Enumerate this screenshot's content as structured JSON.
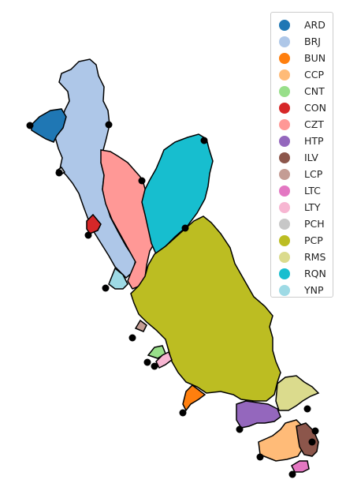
{
  "legend": {
    "items": [
      {
        "label": "ARD",
        "color": "#1f77b4"
      },
      {
        "label": "BRJ",
        "color": "#aec7e8"
      },
      {
        "label": "BUN",
        "color": "#ff7f0e"
      },
      {
        "label": "CCP",
        "color": "#ffbb78"
      },
      {
        "label": "CNT",
        "color": "#98df8a"
      },
      {
        "label": "CON",
        "color": "#d62728"
      },
      {
        "label": "CZT",
        "color": "#ff9896"
      },
      {
        "label": "HTP",
        "color": "#9467bd"
      },
      {
        "label": "ILV",
        "color": "#8c564b"
      },
      {
        "label": "LCP",
        "color": "#c49c94"
      },
      {
        "label": "LTC",
        "color": "#e377c2"
      },
      {
        "label": "LTY",
        "color": "#f7b6d2"
      },
      {
        "label": "PCH",
        "color": "#c7c7c7"
      },
      {
        "label": "PCP",
        "color": "#bcbd22"
      },
      {
        "label": "RMS",
        "color": "#dbdb8d"
      },
      {
        "label": "RQN",
        "color": "#17becf"
      },
      {
        "label": "YNP",
        "color": "#9edae5"
      }
    ]
  }
}
